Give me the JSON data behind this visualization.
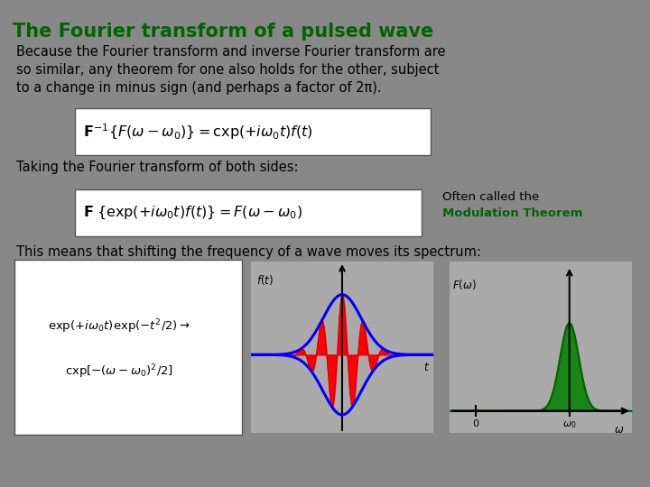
{
  "bg_color": "#888888",
  "title": "The Fourier transform of a pulsed wave",
  "title_color": "#006400",
  "title_fontsize": 15,
  "body_text_fontsize": 10.5,
  "body_text_1": "Because the Fourier transform and inverse Fourier transform are\nso similar, any theorem for one also holds for the other, subject\nto a change in minus sign (and perhaps a factor of 2π).",
  "taking_text": "Taking the Fourier transform of both sides:",
  "often_line1": "Often called the",
  "often_line2": "Modulation Theorem",
  "often_color": "#006400",
  "spectrum_text": "This means that shifting the frequency of a wave moves its spectrum:"
}
